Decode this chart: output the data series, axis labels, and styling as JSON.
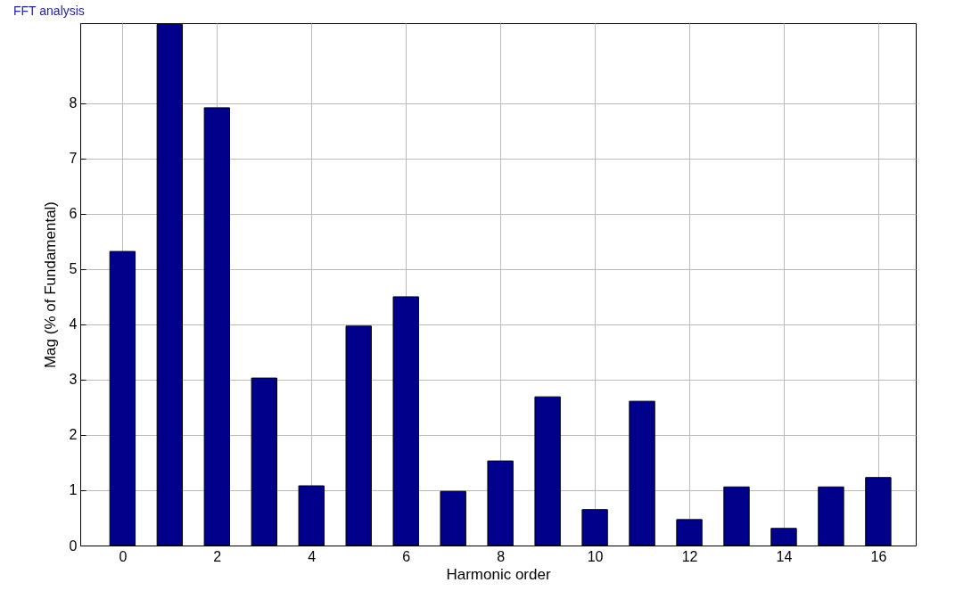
{
  "chart_data": {
    "type": "bar",
    "title": "FFT analysis",
    "xlabel": "Harmonic order",
    "ylabel": "Mag (% of Fundamental)",
    "x": [
      0,
      1,
      2,
      3,
      4,
      5,
      6,
      7,
      8,
      9,
      10,
      11,
      12,
      13,
      14,
      15,
      16
    ],
    "values": [
      5.32,
      9.43,
      7.92,
      3.03,
      1.08,
      3.97,
      4.5,
      0.98,
      1.53,
      2.69,
      0.65,
      2.61,
      0.47,
      1.06,
      0.31,
      1.06,
      1.23
    ],
    "color": "#00008b",
    "xlim": [
      -0.8,
      16.7
    ],
    "xticks": [
      0,
      2,
      4,
      6,
      8,
      10,
      12,
      14,
      16
    ],
    "ylim": [
      0,
      9.45
    ],
    "yticks": [
      0,
      1,
      2,
      3,
      4,
      5,
      6,
      7,
      8
    ],
    "grid": true
  }
}
